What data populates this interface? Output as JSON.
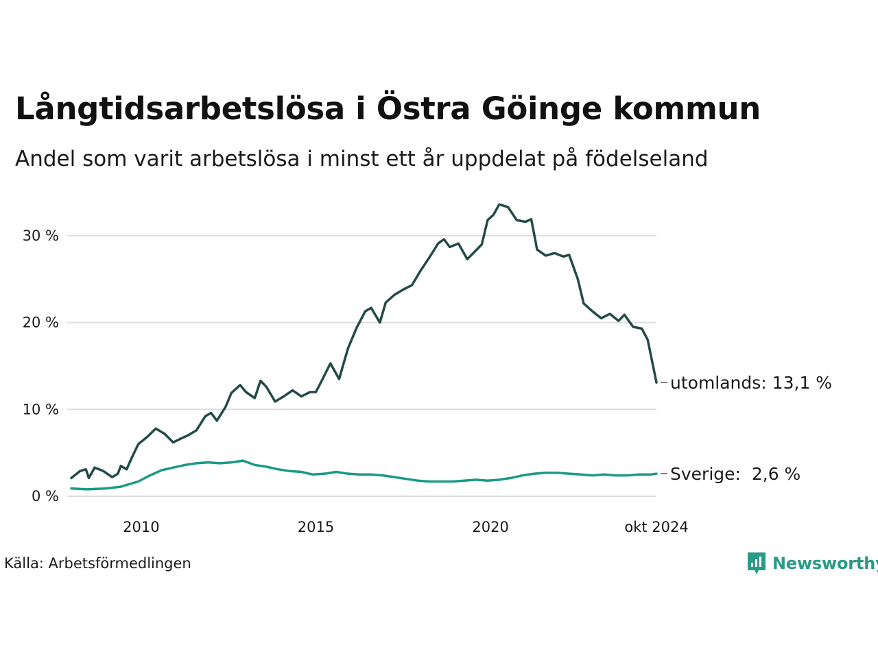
{
  "header": {
    "title": "Långtidsarbetslösa i Östra Göinge kommun",
    "subtitle": "Andel som varit arbetslösa i minst ett år uppdelat på födelseland"
  },
  "footer": {
    "source": "Källa: Arbetsförmedlingen",
    "brand": "Newsworthy",
    "brand_icon": "newsworthy-logo-icon"
  },
  "colors": {
    "utomlands": "#234a46",
    "sverige": "#1a9a86",
    "grid": "#dddddd",
    "brand": "#2a9a88"
  },
  "chart_data": {
    "type": "line",
    "title": "Långtidsarbetslösa i Östra Göinge kommun",
    "subtitle": "Andel som varit arbetslösa i minst ett år uppdelat på födelseland",
    "xlabel": "",
    "ylabel": "",
    "x_range": [
      "2008-01",
      "2024-10"
    ],
    "ylim": [
      0,
      35
    ],
    "y_ticks": [
      0,
      10,
      20,
      30
    ],
    "y_tick_labels": [
      "0 %",
      "10 %",
      "20 %",
      "30 %"
    ],
    "x_ticks": [
      "2010-01",
      "2015-01",
      "2020-01",
      "2024-10"
    ],
    "x_tick_labels": [
      "2010",
      "2015",
      "2020",
      "okt 2024"
    ],
    "grid": "horizontal",
    "series": [
      {
        "name": "utomlands",
        "end_label": "utomlands: 13,1 %",
        "points": [
          [
            "2008-01",
            2.1
          ],
          [
            "2008-04",
            2.9
          ],
          [
            "2008-06",
            3.1
          ],
          [
            "2008-07",
            2.1
          ],
          [
            "2008-09",
            3.3
          ],
          [
            "2008-12",
            2.9
          ],
          [
            "2009-03",
            2.2
          ],
          [
            "2009-05",
            2.6
          ],
          [
            "2009-06",
            3.5
          ],
          [
            "2009-08",
            3.1
          ],
          [
            "2009-10",
            4.6
          ],
          [
            "2009-12",
            6.0
          ],
          [
            "2010-03",
            6.8
          ],
          [
            "2010-06",
            7.8
          ],
          [
            "2010-09",
            7.2
          ],
          [
            "2010-12",
            6.2
          ],
          [
            "2011-03",
            6.7
          ],
          [
            "2011-05",
            7.0
          ],
          [
            "2011-08",
            7.6
          ],
          [
            "2011-11",
            9.2
          ],
          [
            "2012-01",
            9.6
          ],
          [
            "2012-03",
            8.7
          ],
          [
            "2012-06",
            10.3
          ],
          [
            "2012-08",
            11.9
          ],
          [
            "2012-11",
            12.8
          ],
          [
            "2013-01",
            12.0
          ],
          [
            "2013-04",
            11.3
          ],
          [
            "2013-06",
            13.3
          ],
          [
            "2013-08",
            12.6
          ],
          [
            "2013-11",
            10.9
          ],
          [
            "2014-02",
            11.5
          ],
          [
            "2014-05",
            12.2
          ],
          [
            "2014-08",
            11.5
          ],
          [
            "2014-11",
            12.0
          ],
          [
            "2015-01",
            12.0
          ],
          [
            "2015-03",
            13.3
          ],
          [
            "2015-06",
            15.3
          ],
          [
            "2015-09",
            13.5
          ],
          [
            "2015-12",
            17.0
          ],
          [
            "2016-03",
            19.4
          ],
          [
            "2016-06",
            21.3
          ],
          [
            "2016-08",
            21.7
          ],
          [
            "2016-11",
            20.0
          ],
          [
            "2017-01",
            22.3
          ],
          [
            "2017-04",
            23.2
          ],
          [
            "2017-07",
            23.8
          ],
          [
            "2017-10",
            24.3
          ],
          [
            "2018-01",
            26.0
          ],
          [
            "2018-04",
            27.5
          ],
          [
            "2018-07",
            29.1
          ],
          [
            "2018-09",
            29.6
          ],
          [
            "2018-11",
            28.7
          ],
          [
            "2019-02",
            29.1
          ],
          [
            "2019-05",
            27.3
          ],
          [
            "2019-08",
            28.3
          ],
          [
            "2019-10",
            29.0
          ],
          [
            "2019-12",
            31.8
          ],
          [
            "2020-02",
            32.4
          ],
          [
            "2020-04",
            33.6
          ],
          [
            "2020-07",
            33.3
          ],
          [
            "2020-10",
            31.8
          ],
          [
            "2021-01",
            31.6
          ],
          [
            "2021-03",
            31.9
          ],
          [
            "2021-05",
            28.4
          ],
          [
            "2021-08",
            27.7
          ],
          [
            "2021-11",
            28.0
          ],
          [
            "2022-02",
            27.6
          ],
          [
            "2022-04",
            27.8
          ],
          [
            "2022-07",
            25.0
          ],
          [
            "2022-09",
            22.2
          ],
          [
            "2022-12",
            21.3
          ],
          [
            "2023-03",
            20.5
          ],
          [
            "2023-06",
            21.0
          ],
          [
            "2023-09",
            20.2
          ],
          [
            "2023-11",
            20.9
          ],
          [
            "2024-02",
            19.5
          ],
          [
            "2024-05",
            19.3
          ],
          [
            "2024-07",
            18.0
          ],
          [
            "2024-10",
            13.1
          ]
        ]
      },
      {
        "name": "Sverige",
        "end_label": "Sverige:  2,6 %",
        "points": [
          [
            "2008-01",
            0.9
          ],
          [
            "2008-06",
            0.8
          ],
          [
            "2009-01",
            0.9
          ],
          [
            "2009-06",
            1.1
          ],
          [
            "2009-12",
            1.7
          ],
          [
            "2010-04",
            2.4
          ],
          [
            "2010-08",
            3.0
          ],
          [
            "2010-12",
            3.3
          ],
          [
            "2011-04",
            3.6
          ],
          [
            "2011-08",
            3.8
          ],
          [
            "2011-12",
            3.9
          ],
          [
            "2012-04",
            3.8
          ],
          [
            "2012-08",
            3.9
          ],
          [
            "2012-12",
            4.1
          ],
          [
            "2013-04",
            3.6
          ],
          [
            "2013-08",
            3.4
          ],
          [
            "2013-12",
            3.1
          ],
          [
            "2014-04",
            2.9
          ],
          [
            "2014-08",
            2.8
          ],
          [
            "2014-12",
            2.5
          ],
          [
            "2015-04",
            2.6
          ],
          [
            "2015-08",
            2.8
          ],
          [
            "2015-12",
            2.6
          ],
          [
            "2016-04",
            2.5
          ],
          [
            "2016-08",
            2.5
          ],
          [
            "2016-12",
            2.4
          ],
          [
            "2017-04",
            2.2
          ],
          [
            "2017-08",
            2.0
          ],
          [
            "2017-12",
            1.8
          ],
          [
            "2018-04",
            1.7
          ],
          [
            "2018-08",
            1.7
          ],
          [
            "2018-12",
            1.7
          ],
          [
            "2019-04",
            1.8
          ],
          [
            "2019-08",
            1.9
          ],
          [
            "2019-12",
            1.8
          ],
          [
            "2020-04",
            1.9
          ],
          [
            "2020-08",
            2.1
          ],
          [
            "2020-12",
            2.4
          ],
          [
            "2021-04",
            2.6
          ],
          [
            "2021-08",
            2.7
          ],
          [
            "2021-12",
            2.7
          ],
          [
            "2022-04",
            2.6
          ],
          [
            "2022-08",
            2.5
          ],
          [
            "2022-12",
            2.4
          ],
          [
            "2023-04",
            2.5
          ],
          [
            "2023-08",
            2.4
          ],
          [
            "2023-12",
            2.4
          ],
          [
            "2024-04",
            2.5
          ],
          [
            "2024-08",
            2.5
          ],
          [
            "2024-10",
            2.6
          ]
        ]
      }
    ]
  }
}
